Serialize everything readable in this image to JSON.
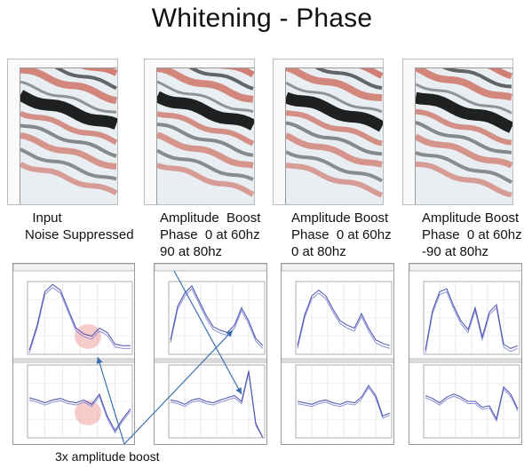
{
  "slide": {
    "title": "Whitening - Phase"
  },
  "panels": [
    {
      "id": "input",
      "caption": "  Input\nNoise Suppressed",
      "amplitude": [
        6,
        40,
        86,
        96,
        88,
        62,
        36,
        28,
        25,
        36,
        30,
        14,
        12,
        12
      ],
      "phase": [
        55,
        52,
        48,
        52,
        54,
        50,
        48,
        52,
        46,
        60,
        30,
        10,
        26,
        40
      ]
    },
    {
      "id": "boost-90",
      "caption": "Amplitude  Boost\nPhase  0 at 60hz\n90 at 80hz",
      "amplitude": [
        20,
        66,
        84,
        94,
        74,
        54,
        38,
        33,
        30,
        40,
        64,
        46,
        22,
        12
      ],
      "phase": [
        52,
        50,
        46,
        52,
        54,
        50,
        48,
        52,
        55,
        58,
        50,
        92,
        20,
        0
      ]
    },
    {
      "id": "boost-0",
      "caption": "Amplitude Boost\nPhase  0 at 60hz\n0 at 80hz",
      "amplitude": [
        12,
        54,
        80,
        88,
        80,
        62,
        46,
        40,
        36,
        56,
        36,
        20,
        15,
        12
      ],
      "phase": [
        50,
        48,
        46,
        50,
        52,
        48,
        46,
        50,
        48,
        56,
        72,
        58,
        30,
        34
      ]
    },
    {
      "id": "boost-neg90",
      "caption": "Amplitude Boost\nPhase  0 at 60hz\n-90 at 80hz",
      "amplitude": [
        6,
        60,
        86,
        90,
        66,
        46,
        34,
        64,
        24,
        58,
        68,
        14,
        8,
        12
      ],
      "phase": [
        58,
        54,
        48,
        56,
        60,
        56,
        50,
        50,
        42,
        44,
        26,
        70,
        60,
        40
      ]
    }
  ],
  "annotation": {
    "text": "3x amplitude boost"
  },
  "colors": {
    "curve_primary": "#4a4fb0",
    "curve_secondary": "#8a8fd8",
    "arrow": "#3b6fb0",
    "highlight": "#f2a0a0",
    "seis_red": "#c85a4a",
    "seis_dark": "#141414"
  }
}
